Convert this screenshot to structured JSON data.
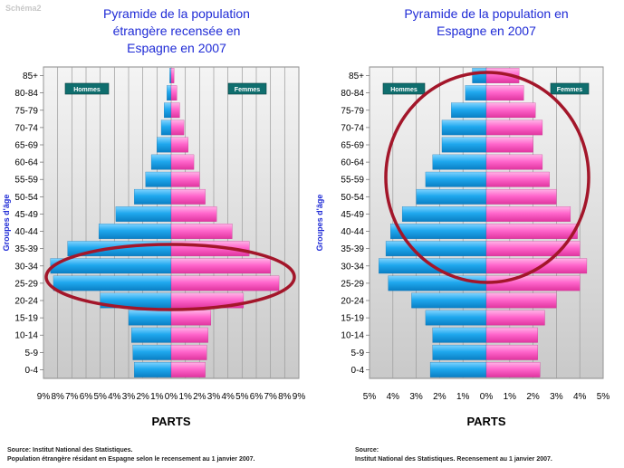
{
  "schema_label": "Schéma2",
  "chart_data": [
    {
      "type": "bar",
      "orientation": "horizontal-pyramid",
      "title_lines": [
        "Pyramide de la population",
        "étrangère recensée en",
        "Espagne en 2007"
      ],
      "ylabel": "Groupes d'âge",
      "xlabel": "PARTS",
      "categories": [
        "0-4",
        "5-9",
        "10-14",
        "15-19",
        "20-24",
        "25-29",
        "30-34",
        "35-39",
        "40-44",
        "45-49",
        "50-54",
        "55-59",
        "60-64",
        "65-69",
        "70-74",
        "75-79",
        "80-84",
        "85+"
      ],
      "series": [
        {
          "name": "Hommes",
          "side": "left",
          "color": "#1fa8ee",
          "values": [
            2.6,
            2.7,
            2.8,
            3.0,
            5.0,
            8.3,
            8.5,
            7.3,
            5.1,
            3.9,
            2.6,
            1.8,
            1.4,
            1.0,
            0.7,
            0.5,
            0.3,
            0.1
          ]
        },
        {
          "name": "Femmes",
          "side": "right",
          "color": "#ff66cc",
          "values": [
            2.4,
            2.5,
            2.6,
            2.8,
            5.1,
            7.6,
            7.0,
            5.5,
            4.3,
            3.2,
            2.4,
            2.0,
            1.6,
            1.2,
            0.9,
            0.6,
            0.4,
            0.2
          ]
        }
      ],
      "xlim": [
        -9,
        9
      ],
      "xticks": [
        "9%",
        "8%",
        "7%",
        "6%",
        "5%",
        "4%",
        "3%",
        "2%",
        "1%",
        "0%",
        "1%",
        "2%",
        "3%",
        "4%",
        "5%",
        "6%",
        "7%",
        "8%",
        "9%"
      ],
      "legend": [
        "Hommes",
        "Femmes"
      ],
      "highlight": "ellipse around age groups 25-34",
      "source_lines": [
        "Source: Institut National des Statistiques.",
        "Population étrangère résidant en Espagne selon le recensement au 1 janvier 2007."
      ]
    },
    {
      "type": "bar",
      "orientation": "horizontal-pyramid",
      "title_lines": [
        "Pyramide de la population en",
        "Espagne en 2007"
      ],
      "ylabel": "Groupes d'âge",
      "xlabel": "PARTS",
      "categories": [
        "0-4",
        "5-9",
        "10-14",
        "15-19",
        "20-24",
        "25-29",
        "30-34",
        "35-39",
        "40-44",
        "45-49",
        "50-54",
        "55-59",
        "60-64",
        "65-69",
        "70-74",
        "75-79",
        "80-84",
        "85+"
      ],
      "series": [
        {
          "name": "Hommes",
          "side": "left",
          "color": "#1fa8ee",
          "values": [
            2.4,
            2.3,
            2.3,
            2.6,
            3.2,
            4.2,
            4.6,
            4.3,
            4.1,
            3.6,
            3.0,
            2.6,
            2.3,
            1.9,
            1.9,
            1.5,
            0.9,
            0.6
          ]
        },
        {
          "name": "Femmes",
          "side": "right",
          "color": "#ff66cc",
          "values": [
            2.3,
            2.2,
            2.2,
            2.5,
            3.0,
            4.0,
            4.3,
            4.0,
            3.9,
            3.6,
            3.0,
            2.7,
            2.4,
            2.0,
            2.4,
            2.1,
            1.6,
            1.4
          ]
        }
      ],
      "xlim": [
        -5,
        5
      ],
      "xticks": [
        "5%",
        "4%",
        "3%",
        "2%",
        "1%",
        "0%",
        "1%",
        "2%",
        "3%",
        "4%",
        "5%"
      ],
      "legend": [
        "Hommes",
        "Femmes"
      ],
      "highlight": "ellipse around age groups 35-84",
      "source_lines": [
        "Source:",
        "Institut National des Statistiques.  Recensement au 1 janvier 2007."
      ]
    }
  ]
}
